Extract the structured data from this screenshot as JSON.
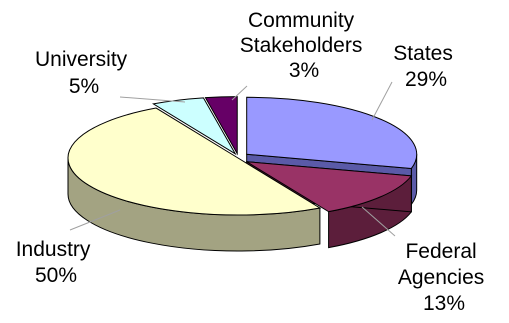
{
  "chart_data": {
    "type": "pie",
    "style": "3d-exploded",
    "title": "",
    "slices": [
      {
        "label": "States",
        "value": 29,
        "value_label": "29%",
        "color": "#9999ff",
        "side_color": "#5a5aa8"
      },
      {
        "label": "Federal Agencies",
        "label_lines": [
          "Federal",
          "Agencies"
        ],
        "value": 13,
        "value_label": "13%",
        "color": "#993366",
        "side_color": "#5c1e3b"
      },
      {
        "label": "Industry",
        "value": 50,
        "value_label": "50%",
        "color": "#ffffcc",
        "side_color": "#a3a382"
      },
      {
        "label": "University",
        "value": 5,
        "value_label": "5%",
        "color": "#ccffff",
        "side_color": "#7fa0a0"
      },
      {
        "label": "Community Stakeholders",
        "label_lines": [
          "Community",
          "Stakeholders"
        ],
        "value": 3,
        "value_label": "3%",
        "color": "#660066",
        "side_color": "#3a003a"
      }
    ],
    "legend": "none"
  }
}
